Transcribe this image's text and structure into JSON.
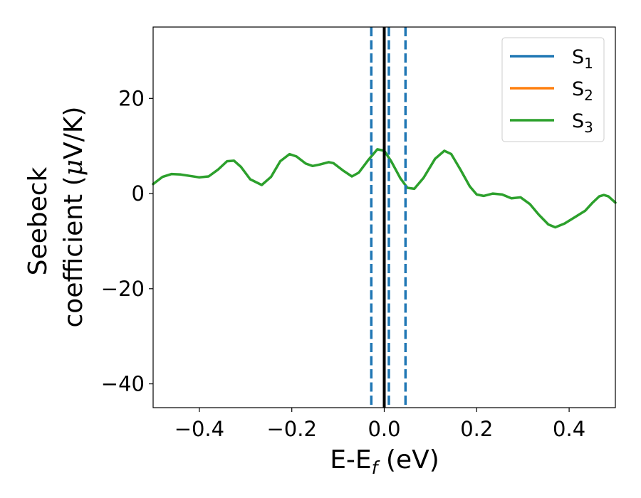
{
  "chart_data": {
    "type": "line",
    "xlabel": {
      "main": "E-E",
      "sub": "f",
      "tail": " (eV)"
    },
    "ylabel": {
      "line1": "Seebeck",
      "line2_prefix": "coefficient  (",
      "line2_mu": "μ",
      "line2_suffix": "V/K)"
    },
    "xlim": [
      -0.5,
      0.5
    ],
    "ylim": [
      -45,
      35
    ],
    "xticks": [
      -0.4,
      -0.2,
      0.0,
      0.2,
      0.4
    ],
    "xtick_labels": [
      "−0.4",
      "−0.2",
      "0.0",
      "0.2",
      "0.4"
    ],
    "yticks": [
      -40,
      -20,
      0,
      20
    ],
    "ytick_labels": [
      "−40",
      "−20",
      "0",
      "20"
    ],
    "legend_position": "top-right",
    "series": [
      {
        "name": "S",
        "subscript": "1",
        "color": "#1f77b4"
      },
      {
        "name": "S",
        "subscript": "2",
        "color": "#ff7f0e"
      },
      {
        "name": "S",
        "subscript": "3",
        "color": "#2ca02c",
        "points": [
          [
            -0.5,
            2.0
          ],
          [
            -0.48,
            3.5
          ],
          [
            -0.46,
            4.1
          ],
          [
            -0.44,
            4.0
          ],
          [
            -0.42,
            3.7
          ],
          [
            -0.4,
            3.4
          ],
          [
            -0.38,
            3.6
          ],
          [
            -0.36,
            5.0
          ],
          [
            -0.34,
            6.8
          ],
          [
            -0.325,
            6.9
          ],
          [
            -0.31,
            5.6
          ],
          [
            -0.29,
            3.0
          ],
          [
            -0.265,
            1.8
          ],
          [
            -0.245,
            3.5
          ],
          [
            -0.225,
            6.8
          ],
          [
            -0.205,
            8.3
          ],
          [
            -0.19,
            7.8
          ],
          [
            -0.17,
            6.3
          ],
          [
            -0.155,
            5.8
          ],
          [
            -0.14,
            6.1
          ],
          [
            -0.12,
            6.6
          ],
          [
            -0.11,
            6.4
          ],
          [
            -0.09,
            4.9
          ],
          [
            -0.07,
            3.6
          ],
          [
            -0.055,
            4.4
          ],
          [
            -0.035,
            7.0
          ],
          [
            -0.015,
            9.3
          ],
          [
            0.0,
            9.0
          ],
          [
            0.015,
            6.8
          ],
          [
            0.035,
            3.2
          ],
          [
            0.05,
            1.2
          ],
          [
            0.065,
            1.0
          ],
          [
            0.085,
            3.3
          ],
          [
            0.11,
            7.3
          ],
          [
            0.13,
            9.0
          ],
          [
            0.145,
            8.3
          ],
          [
            0.165,
            5.0
          ],
          [
            0.185,
            1.5
          ],
          [
            0.2,
            -0.2
          ],
          [
            0.215,
            -0.5
          ],
          [
            0.235,
            0.0
          ],
          [
            0.255,
            -0.2
          ],
          [
            0.275,
            -1.0
          ],
          [
            0.295,
            -0.8
          ],
          [
            0.315,
            -2.2
          ],
          [
            0.335,
            -4.5
          ],
          [
            0.355,
            -6.5
          ],
          [
            0.37,
            -7.1
          ],
          [
            0.39,
            -6.3
          ],
          [
            0.415,
            -4.8
          ],
          [
            0.435,
            -3.6
          ],
          [
            0.45,
            -2.0
          ],
          [
            0.465,
            -0.6
          ],
          [
            0.475,
            -0.3
          ],
          [
            0.485,
            -0.6
          ],
          [
            0.5,
            -1.9
          ]
        ]
      }
    ],
    "reference_lines": {
      "solid": {
        "x": 0.0,
        "color": "#000000"
      },
      "dashed": {
        "x": [
          -0.028,
          0.01,
          0.046
        ],
        "color": "#1f77b4"
      }
    }
  }
}
